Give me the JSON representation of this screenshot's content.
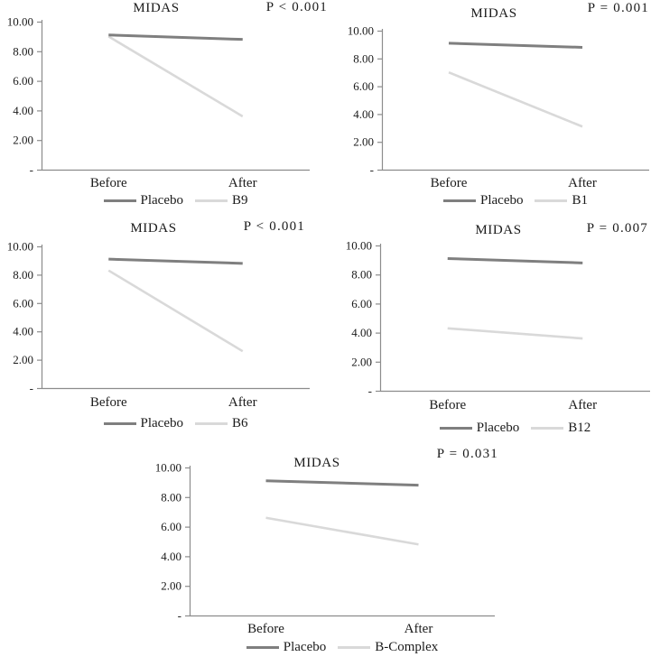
{
  "figure": {
    "description_title": "MIDAS",
    "background": "#ffffff"
  },
  "colors": {
    "placebo_line": "#7f7f7f",
    "treatment_line": "#d9d9d9",
    "axis_line": "#8c8c8c",
    "text": "#1a1a1a"
  },
  "y_axis": {
    "tick_labels": [
      "-",
      "2.00",
      "4.00",
      "6.00",
      "8.00",
      "10.00"
    ],
    "tick_values": [
      0,
      2,
      4,
      6,
      8,
      10
    ]
  },
  "chart_data": [
    {
      "type": "line",
      "title": "MIDAS",
      "p_label": "P < 0.001",
      "x_categories": [
        "Before",
        "After"
      ],
      "ylim": [
        0,
        10
      ],
      "grid": false,
      "legend_position": "bottom",
      "series": [
        {
          "name": "Placebo",
          "color": "#7f7f7f",
          "values": [
            9.1,
            8.8
          ]
        },
        {
          "name": "B9",
          "color": "#d9d9d9",
          "values": [
            9.0,
            3.6
          ]
        }
      ]
    },
    {
      "type": "line",
      "title": "MIDAS",
      "p_label": "P = 0.001",
      "x_categories": [
        "Before",
        "After"
      ],
      "ylim": [
        0,
        10
      ],
      "grid": false,
      "legend_position": "bottom",
      "series": [
        {
          "name": "Placebo",
          "color": "#7f7f7f",
          "values": [
            9.1,
            8.8
          ]
        },
        {
          "name": "B1",
          "color": "#d9d9d9",
          "values": [
            7.0,
            3.1
          ]
        }
      ]
    },
    {
      "type": "line",
      "title": "MIDAS",
      "p_label": "P < 0.001",
      "x_categories": [
        "Before",
        "After"
      ],
      "ylim": [
        0,
        10
      ],
      "grid": false,
      "legend_position": "bottom",
      "series": [
        {
          "name": "Placebo",
          "color": "#7f7f7f",
          "values": [
            9.1,
            8.8
          ]
        },
        {
          "name": "B6",
          "color": "#d9d9d9",
          "values": [
            8.3,
            2.6
          ]
        }
      ]
    },
    {
      "type": "line",
      "title": "MIDAS",
      "p_label": "P = 0.007",
      "x_categories": [
        "Before",
        "After"
      ],
      "ylim": [
        0,
        10
      ],
      "grid": false,
      "legend_position": "bottom",
      "series": [
        {
          "name": "Placebo",
          "color": "#7f7f7f",
          "values": [
            9.1,
            8.8
          ]
        },
        {
          "name": "B12",
          "color": "#d9d9d9",
          "values": [
            4.3,
            3.6
          ]
        }
      ]
    },
    {
      "type": "line",
      "title": "MIDAS",
      "p_label": "P = 0.031",
      "x_categories": [
        "Before",
        "After"
      ],
      "ylim": [
        0,
        10
      ],
      "grid": false,
      "legend_position": "bottom",
      "series": [
        {
          "name": "Placebo",
          "color": "#7f7f7f",
          "values": [
            9.1,
            8.8
          ]
        },
        {
          "name": "B-Complex",
          "color": "#d9d9d9",
          "values": [
            6.6,
            4.8
          ]
        }
      ]
    }
  ]
}
